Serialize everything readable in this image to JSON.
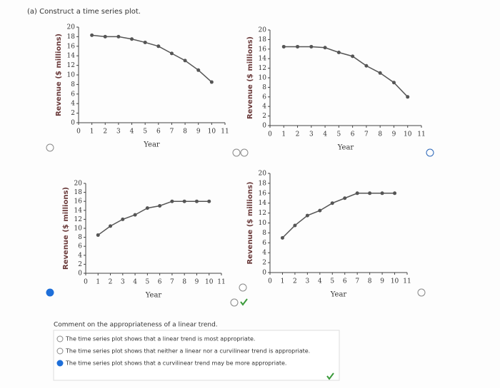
{
  "part_label": "(a) Construct a time series plot.",
  "chart_data": [
    {
      "type": "line",
      "x_label": "Year",
      "y_label": "Revenue ($ millions)",
      "x": [
        1,
        2,
        3,
        4,
        5,
        6,
        7,
        8,
        9,
        10
      ],
      "values": [
        18.3,
        18,
        18,
        17.5,
        16.8,
        16,
        14.5,
        13,
        11,
        8.5
      ],
      "color": "#555",
      "xlim": [
        0,
        11
      ],
      "ylim": [
        0,
        20
      ],
      "xticks": [
        0,
        1,
        2,
        3,
        4,
        5,
        6,
        7,
        8,
        9,
        10,
        11
      ],
      "yticks": [
        0,
        2,
        4,
        6,
        8,
        10,
        12,
        14,
        16,
        18,
        20
      ]
    },
    {
      "type": "line",
      "x_label": "Year",
      "y_label": "Revenue ($ millions)",
      "x": [
        1,
        2,
        3,
        4,
        5,
        6,
        7,
        8,
        9,
        10
      ],
      "values": [
        16.5,
        16.5,
        16.5,
        16.3,
        15.3,
        14.5,
        12.5,
        11,
        9,
        6
      ],
      "color": "#555",
      "xlim": [
        0,
        11
      ],
      "ylim": [
        0,
        20
      ],
      "xticks": [
        0,
        1,
        2,
        3,
        4,
        5,
        6,
        7,
        8,
        9,
        10,
        11
      ],
      "yticks": [
        0,
        2,
        4,
        6,
        8,
        10,
        12,
        14,
        16,
        18,
        20
      ]
    },
    {
      "type": "line",
      "x_label": "Year",
      "y_label": "Revenue ($ millions)",
      "x": [
        1,
        2,
        3,
        4,
        5,
        6,
        7,
        8,
        9,
        10
      ],
      "values": [
        8.5,
        10.5,
        12,
        13,
        14.5,
        15,
        16,
        16,
        16,
        16
      ],
      "color": "#555",
      "xlim": [
        0,
        11
      ],
      "ylim": [
        0,
        20
      ],
      "xticks": [
        0,
        1,
        2,
        3,
        4,
        5,
        6,
        7,
        8,
        9,
        10,
        11
      ],
      "yticks": [
        0,
        2,
        4,
        6,
        8,
        10,
        12,
        14,
        16,
        18,
        20
      ]
    },
    {
      "type": "line",
      "x_label": "Year",
      "y_label": "Revenue ($ millions)",
      "x": [
        1,
        2,
        3,
        4,
        5,
        6,
        7,
        8,
        9,
        10
      ],
      "values": [
        7,
        9.5,
        11.5,
        12.5,
        14,
        15,
        16,
        16,
        16,
        16
      ],
      "color": "#555",
      "xlim": [
        0,
        11
      ],
      "ylim": [
        0,
        20
      ],
      "xticks": [
        0,
        1,
        2,
        3,
        4,
        5,
        6,
        7,
        8,
        9,
        10,
        11
      ],
      "yticks": [
        0,
        2,
        4,
        6,
        8,
        10,
        12,
        14,
        16,
        18,
        20
      ]
    }
  ],
  "question": "Comment on the appropriateness of a linear trend.",
  "options": [
    "The time series plot shows that a linear trend is most appropriate.",
    "The time series plot shows that neither a linear nor a curvilinear trend is appropriate.",
    "The time series plot shows that a curvilinear trend may be more appropriate."
  ],
  "selected_option": 2
}
